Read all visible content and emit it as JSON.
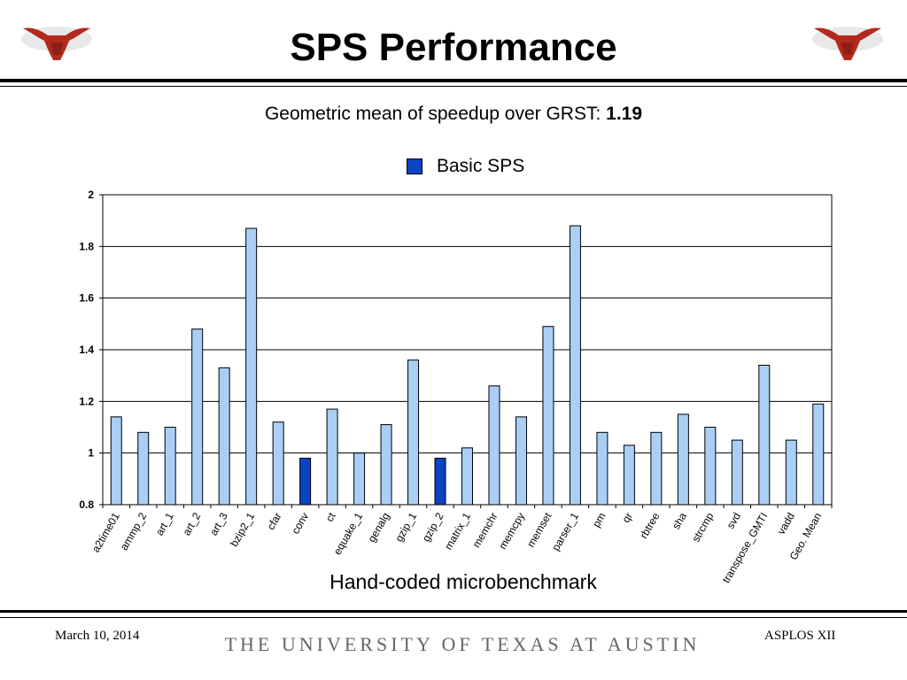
{
  "slide": {
    "title": "SPS Performance",
    "subtitle_prefix": "Geometric mean of speedup over GRST: ",
    "subtitle_value": "1.19",
    "footer_date": "March 10, 2014",
    "footer_university": "THE UNIVERSITY OF TEXAS AT AUSTIN",
    "footer_conference": "ASPLOS XII"
  },
  "colors": {
    "bar_light": "#a9cff5",
    "bar_dark": "#0a44c4",
    "logo": "#b22a1e"
  },
  "icons": {
    "logo": "longhorn-logo-icon"
  },
  "chart_data": {
    "type": "bar",
    "title": "",
    "xlabel": "Hand-coded microbenchmark",
    "ylabel": "",
    "ylim": [
      0.8,
      2
    ],
    "yticks": [
      0.8,
      1,
      1.2,
      1.4,
      1.6,
      1.8,
      2
    ],
    "ytick_labels": [
      "0.8",
      "1",
      "1.2",
      "1.4",
      "1.6",
      "1.8",
      "2"
    ],
    "grid": true,
    "legend_position": "top-center",
    "categories": [
      "a2time01",
      "ammp_2",
      "art_1",
      "art_2",
      "art_3",
      "bzip2_1",
      "cfar",
      "conv",
      "ct",
      "equake_1",
      "genalg",
      "gzip_1",
      "gzip_2",
      "matrix_1",
      "memchr",
      "memcpy",
      "memset",
      "parser_1",
      "pm",
      "qr",
      "rbtree",
      "sha",
      "strcmp",
      "svd",
      "transpose_GMTI",
      "vadd",
      "Geo. Mean"
    ],
    "series": [
      {
        "name": "Basic SPS",
        "values": [
          1.14,
          1.08,
          1.1,
          1.48,
          1.33,
          1.87,
          1.12,
          0.98,
          1.17,
          1.0,
          1.11,
          1.36,
          0.98,
          1.02,
          1.26,
          1.14,
          1.49,
          1.88,
          1.08,
          1.03,
          1.08,
          1.15,
          1.1,
          1.05,
          1.34,
          1.05,
          1.19
        ]
      }
    ],
    "highlighted_categories": [
      "conv",
      "gzip_2"
    ]
  }
}
